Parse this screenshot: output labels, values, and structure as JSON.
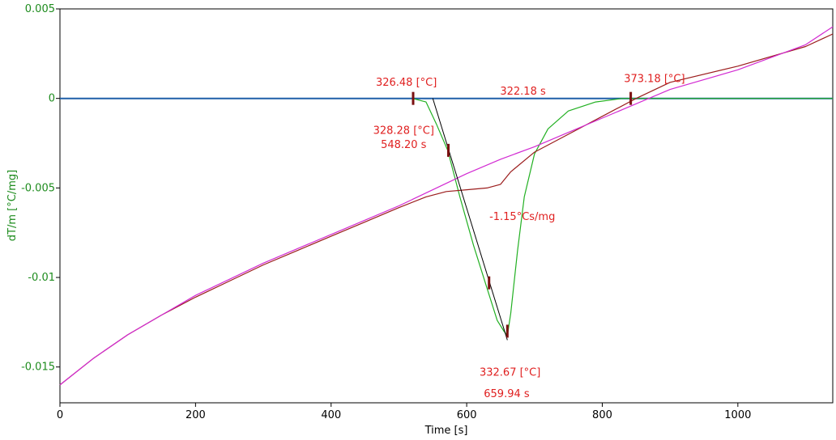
{
  "chart_data": {
    "type": "line",
    "xlabel": "Time [s]",
    "ylabel": "dT/m  [°C/mg]",
    "xlim": [
      0,
      1140
    ],
    "ylim": [
      -0.017,
      0.005
    ],
    "x_ticks": [
      0,
      200,
      400,
      600,
      800,
      1000
    ],
    "y_ticks": [
      0.005,
      0,
      -0.005,
      -0.01,
      -0.015
    ],
    "y_tick_labels": [
      "0.005",
      "0",
      "-0.005",
      "-0.01",
      "-0.015"
    ],
    "grid": false,
    "colors": {
      "baseline": "#1f5fa8",
      "derivative": "#22b022",
      "dark_red": "#9b1c1c",
      "magenta": "#d22ad2",
      "axis_label": "#1e8c1e",
      "annotation": "#e02020",
      "tangent": "#000000",
      "marker": "#7a1010"
    },
    "series": [
      {
        "x": [
          0,
          1140
        ],
        "y": [
          0,
          0
        ]
      },
      {
        "x": [
          520,
          540,
          555,
          572,
          590,
          610,
          630,
          645,
          655,
          660,
          665,
          675,
          685,
          700,
          720,
          750,
          790,
          830,
          1140
        ],
        "y": [
          0,
          -0.0002,
          -0.0014,
          -0.0029,
          -0.0055,
          -0.0082,
          -0.0106,
          -0.0124,
          -0.013,
          -0.01325,
          -0.012,
          -0.0085,
          -0.0055,
          -0.0031,
          -0.0017,
          -0.0007,
          -0.0002,
          0,
          0
        ]
      },
      {
        "x": [
          0,
          50,
          100,
          150,
          200,
          250,
          300,
          350,
          400,
          450,
          500,
          540,
          570,
          600,
          630,
          650,
          665,
          700,
          750,
          800,
          850,
          900,
          1000,
          1100,
          1140
        ],
        "y": [
          -0.016,
          -0.0145,
          -0.0132,
          -0.0121,
          -0.0111,
          -0.0102,
          -0.0093,
          -0.0085,
          -0.0077,
          -0.0069,
          -0.0061,
          -0.0055,
          -0.0052,
          -0.0051,
          -0.005,
          -0.0048,
          -0.0041,
          -0.003,
          -0.002,
          -0.001,
          0,
          0.0009,
          0.0018,
          0.0029,
          0.0036
        ]
      },
      {
        "x": [
          0,
          50,
          100,
          150,
          200,
          250,
          300,
          350,
          400,
          450,
          500,
          550,
          600,
          650,
          700,
          750,
          800,
          850,
          900,
          1000,
          1100,
          1140
        ],
        "y": [
          -0.016,
          -0.0145,
          -0.0132,
          -0.0121,
          -0.011,
          -0.0101,
          -0.0092,
          -0.0084,
          -0.0076,
          -0.0068,
          -0.006,
          -0.0051,
          -0.0042,
          -0.0034,
          -0.0027,
          -0.0019,
          -0.0011,
          -0.0003,
          0.0005,
          0.0016,
          0.003,
          0.004
        ]
      }
    ],
    "tangent_line": {
      "x": [
        550,
        660
      ],
      "y": [
        0,
        -0.0135
      ]
    },
    "markers": [
      {
        "x": 521,
        "y": 0
      },
      {
        "x": 573,
        "y": -0.0029
      },
      {
        "x": 633,
        "y": -0.0103
      },
      {
        "x": 660,
        "y": -0.013
      },
      {
        "x": 842,
        "y": 0
      }
    ],
    "annotations": [
      {
        "text": "326.48 [°C]",
        "x": 511,
        "y": 0.0009
      },
      {
        "text": "322.18 s",
        "x": 683,
        "y": 0.0004
      },
      {
        "text": "373.18 [°C]",
        "x": 877,
        "y": 0.0011
      },
      {
        "text": "328.28 [°C]",
        "x": 507,
        "y": -0.0018
      },
      {
        "text": "548.20 s",
        "x": 507,
        "y": -0.0026
      },
      {
        "text": "-1.15°Cs/mg",
        "x": 682,
        "y": -0.0066
      },
      {
        "text": "332.67 [°C]",
        "x": 664,
        "y": -0.0153
      },
      {
        "text": "659.94 s",
        "x": 659,
        "y": -0.0165
      }
    ]
  }
}
